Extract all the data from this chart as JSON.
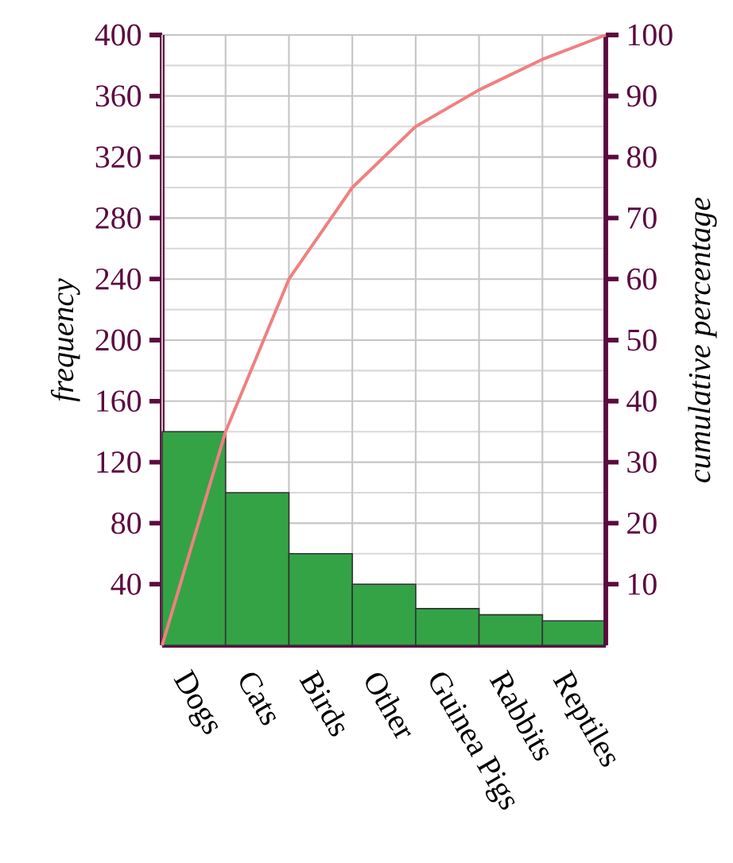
{
  "chart_data": {
    "type": "bar",
    "categories": [
      null,
      "Dogs",
      null,
      "Cats",
      null,
      "Birds",
      null,
      "Other",
      null,
      "Guinea Pigs",
      null,
      "Rabbits",
      null,
      "Reptiles",
      null
    ],
    "series": [
      {
        "type": "bar",
        "color": "#33a346",
        "values": [
          null,
          140,
          null,
          100,
          null,
          60,
          null,
          40,
          null,
          24,
          null,
          20,
          null,
          16,
          null
        ]
      },
      {
        "type": "line",
        "axis": "y2",
        "color": "#f08080",
        "values": [
          0,
          null,
          35,
          null,
          60,
          null,
          75,
          null,
          85,
          null,
          91,
          null,
          96,
          null,
          100
        ]
      }
    ],
    "ylim": [
      0,
      400
    ],
    "yticks": [
      40,
      80,
      120,
      160,
      200,
      240,
      280,
      320,
      360,
      400
    ],
    "y2lim": [
      0,
      100
    ],
    "y2ticks": [
      10,
      20,
      30,
      40,
      50,
      60,
      70,
      80,
      90,
      100
    ],
    "ylabel": "frequency",
    "y2label": "cumulative percentage",
    "grid": true,
    "marker": "none"
  }
}
